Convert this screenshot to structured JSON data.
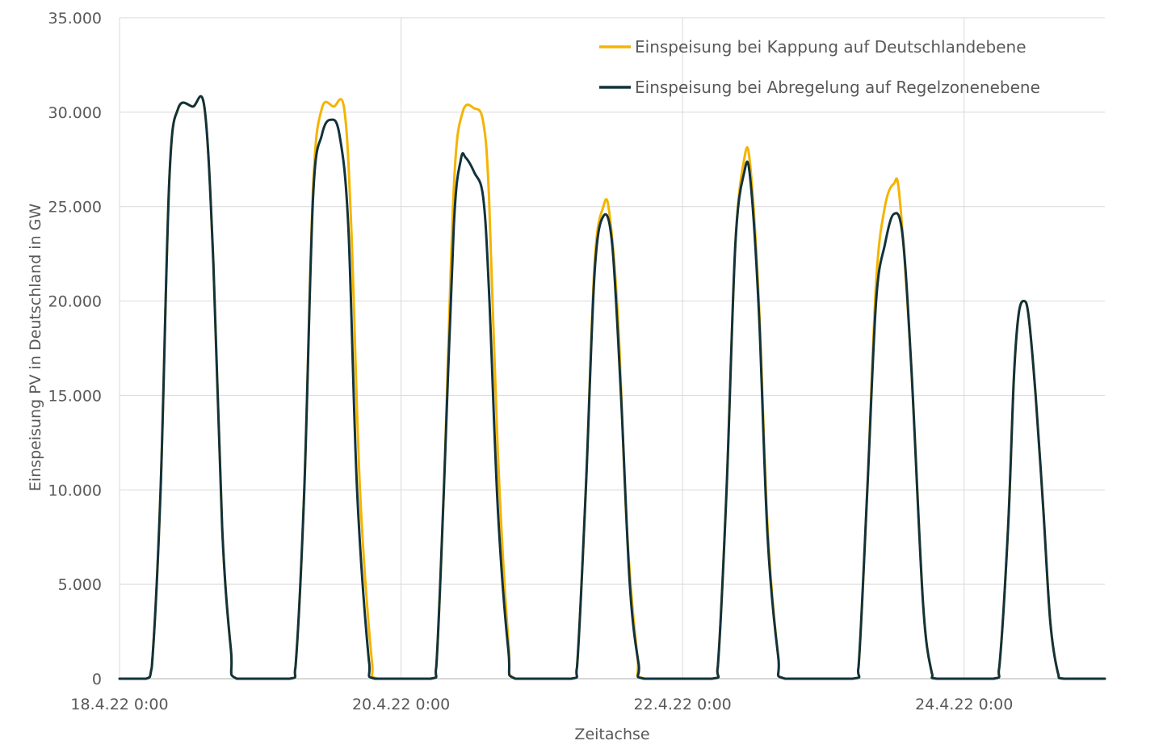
{
  "chart_data": {
    "type": "line",
    "xlabel": "Zeitachse",
    "ylabel": "Einspeisung PV in Deutschland in GW",
    "ylim": [
      0,
      35000
    ],
    "yticks": [
      {
        "value": 0,
        "label": "0"
      },
      {
        "value": 5000,
        "label": "5.000"
      },
      {
        "value": 10000,
        "label": "10.000"
      },
      {
        "value": 15000,
        "label": "15.000"
      },
      {
        "value": 20000,
        "label": "20.000"
      },
      {
        "value": 25000,
        "label": "25.000"
      },
      {
        "value": 30000,
        "label": "30.000"
      },
      {
        "value": 35000,
        "label": "35.000"
      }
    ],
    "xlim": [
      0,
      168
    ],
    "xticks": [
      {
        "value": 0,
        "label": "18.4.22 0:00"
      },
      {
        "value": 48,
        "label": "20.4.22 0:00"
      },
      {
        "value": 96,
        "label": "22.4.22 0:00"
      },
      {
        "value": 144,
        "label": "24.4.22 0:00"
      }
    ],
    "grid": true,
    "legend_position": "top-right",
    "series": [
      {
        "name": "Einspeisung bei Kappung auf Deutschlandebene",
        "color": "#F4B400",
        "points": [
          [
            0,
            0
          ],
          [
            4.5,
            0
          ],
          [
            5.5,
            600
          ],
          [
            7,
            10000
          ],
          [
            8.5,
            26500
          ],
          [
            10,
            30200
          ],
          [
            12.5,
            30300
          ],
          [
            14.5,
            30200
          ],
          [
            16,
            22000
          ],
          [
            17.5,
            8000
          ],
          [
            19,
            1500
          ],
          [
            20,
            0
          ],
          [
            29,
            0
          ],
          [
            30,
            600
          ],
          [
            31.5,
            10000
          ],
          [
            33,
            26000
          ],
          [
            34.5,
            30200
          ],
          [
            36.5,
            30300
          ],
          [
            38.3,
            30200
          ],
          [
            39.5,
            24000
          ],
          [
            41,
            10000
          ],
          [
            43,
            1000
          ],
          [
            44,
            0
          ],
          [
            53,
            0
          ],
          [
            54,
            600
          ],
          [
            55.3,
            10000
          ],
          [
            57,
            26000
          ],
          [
            58.5,
            30000
          ],
          [
            60.5,
            30200
          ],
          [
            62,
            29500
          ],
          [
            63,
            25500
          ],
          [
            64.5,
            12000
          ],
          [
            66.3,
            2000
          ],
          [
            67.5,
            0
          ],
          [
            77,
            0
          ],
          [
            78,
            600
          ],
          [
            79.5,
            10000
          ],
          [
            81,
            22000
          ],
          [
            82.5,
            25000
          ],
          [
            83.5,
            24700
          ],
          [
            85,
            19000
          ],
          [
            86.5,
            8000
          ],
          [
            88.3,
            1200
          ],
          [
            89.5,
            0
          ],
          [
            101,
            0
          ],
          [
            102,
            600
          ],
          [
            103.5,
            10000
          ],
          [
            105,
            23000
          ],
          [
            106.5,
            27500
          ],
          [
            107.5,
            27300
          ],
          [
            109,
            20000
          ],
          [
            110.5,
            8000
          ],
          [
            112.3,
            1200
          ],
          [
            113.5,
            0
          ],
          [
            125,
            0
          ],
          [
            126,
            600
          ],
          [
            127.5,
            10000
          ],
          [
            129,
            21000
          ],
          [
            130.5,
            25000
          ],
          [
            132,
            26200
          ],
          [
            133,
            25500
          ],
          [
            135,
            16500
          ],
          [
            137,
            4000
          ],
          [
            138.5,
            300
          ],
          [
            139.5,
            0
          ],
          [
            149,
            0
          ],
          [
            150,
            600
          ],
          [
            151.5,
            8000
          ],
          [
            152.5,
            16000
          ],
          [
            153.3,
            19300
          ],
          [
            154.2,
            20000
          ],
          [
            155,
            19200
          ],
          [
            156.2,
            15000
          ],
          [
            157.5,
            9000
          ],
          [
            158.7,
            3000
          ],
          [
            160,
            300
          ],
          [
            161,
            0
          ],
          [
            168,
            0
          ]
        ]
      },
      {
        "name": "Einspeisung bei Abregelung auf Regelzonenebene",
        "color": "#12323C",
        "points": [
          [
            0,
            0
          ],
          [
            4.5,
            0
          ],
          [
            5.5,
            600
          ],
          [
            7,
            10000
          ],
          [
            8.5,
            26500
          ],
          [
            10,
            30200
          ],
          [
            12.5,
            30300
          ],
          [
            14.5,
            30200
          ],
          [
            16,
            22000
          ],
          [
            17.5,
            8000
          ],
          [
            19,
            1500
          ],
          [
            20,
            0
          ],
          [
            29,
            0
          ],
          [
            30,
            600
          ],
          [
            31.5,
            10000
          ],
          [
            33,
            25500
          ],
          [
            34.5,
            28800
          ],
          [
            36,
            29600
          ],
          [
            37.5,
            28800
          ],
          [
            39,
            24000
          ],
          [
            40.5,
            10000
          ],
          [
            42.5,
            1000
          ],
          [
            43.5,
            0
          ],
          [
            53,
            0
          ],
          [
            54,
            600
          ],
          [
            55.3,
            10000
          ],
          [
            57,
            24000
          ],
          [
            58.2,
            27500
          ],
          [
            59,
            27600
          ],
          [
            60.5,
            26800
          ],
          [
            62,
            25500
          ],
          [
            63,
            20500
          ],
          [
            64.5,
            9000
          ],
          [
            66.3,
            1500
          ],
          [
            67.5,
            0
          ],
          [
            77,
            0
          ],
          [
            78,
            600
          ],
          [
            79.5,
            10000
          ],
          [
            81,
            21500
          ],
          [
            82.5,
            24500
          ],
          [
            84,
            23000
          ],
          [
            85.5,
            15000
          ],
          [
            87,
            5000
          ],
          [
            88.5,
            800
          ],
          [
            89.5,
            0
          ],
          [
            101,
            0
          ],
          [
            102,
            600
          ],
          [
            103.5,
            10000
          ],
          [
            105,
            23000
          ],
          [
            106.5,
            26800
          ],
          [
            107.5,
            26600
          ],
          [
            109,
            19500
          ],
          [
            110.5,
            7500
          ],
          [
            112.3,
            1200
          ],
          [
            113.5,
            0
          ],
          [
            125,
            0
          ],
          [
            126,
            600
          ],
          [
            127.5,
            10000
          ],
          [
            129,
            20000
          ],
          [
            130.5,
            23000
          ],
          [
            132,
            24600
          ],
          [
            133.5,
            23500
          ],
          [
            135,
            16500
          ],
          [
            137,
            4000
          ],
          [
            138.5,
            300
          ],
          [
            139.5,
            0
          ],
          [
            149,
            0
          ],
          [
            150,
            600
          ],
          [
            151.5,
            8000
          ],
          [
            152.5,
            16000
          ],
          [
            153.3,
            19300
          ],
          [
            154.2,
            20000
          ],
          [
            155,
            19200
          ],
          [
            156.2,
            15000
          ],
          [
            157.5,
            9000
          ],
          [
            158.7,
            3000
          ],
          [
            160,
            300
          ],
          [
            161,
            0
          ],
          [
            168,
            0
          ]
        ]
      }
    ]
  }
}
